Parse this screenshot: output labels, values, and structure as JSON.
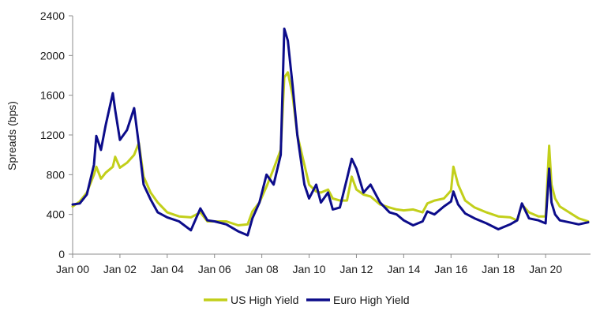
{
  "chart_data": {
    "type": "line",
    "title": "",
    "xlabel": "",
    "ylabel": "Spreads (bps)",
    "ylim": [
      0,
      2400
    ],
    "xlim": [
      2000.0,
      2021.9
    ],
    "y_ticks": [
      0,
      400,
      800,
      1200,
      1600,
      2000,
      2400
    ],
    "x_ticks": [
      {
        "value": 2000,
        "label": "Jan 00"
      },
      {
        "value": 2002,
        "label": "Jan 02"
      },
      {
        "value": 2004,
        "label": "Jan 04"
      },
      {
        "value": 2006,
        "label": "Jan 06"
      },
      {
        "value": 2008,
        "label": "Jan 08"
      },
      {
        "value": 2010,
        "label": "Jan 10"
      },
      {
        "value": 2012,
        "label": "Jan 12"
      },
      {
        "value": 2014,
        "label": "Jan 14"
      },
      {
        "value": 2016,
        "label": "Jan 16"
      },
      {
        "value": 2018,
        "label": "Jan 18"
      },
      {
        "value": 2020,
        "label": "Jan 20"
      }
    ],
    "grid": false,
    "legend_position": "bottom",
    "series": [
      {
        "name": "US High Yield",
        "color": "#c2cf1a",
        "x": [
          2000.0,
          2000.3,
          2000.6,
          2000.9,
          2001.0,
          2001.2,
          2001.4,
          2001.7,
          2001.8,
          2002.0,
          2002.3,
          2002.6,
          2002.8,
          2003.0,
          2003.3,
          2003.6,
          2004.0,
          2004.5,
          2005.0,
          2005.4,
          2005.7,
          2006.0,
          2006.5,
          2007.0,
          2007.4,
          2007.6,
          2007.9,
          2008.2,
          2008.5,
          2008.8,
          2008.95,
          2009.1,
          2009.3,
          2009.5,
          2009.8,
          2010.0,
          2010.3,
          2010.5,
          2010.8,
          2011.0,
          2011.3,
          2011.6,
          2011.8,
          2012.0,
          2012.3,
          2012.6,
          2013.0,
          2013.4,
          2013.7,
          2014.0,
          2014.4,
          2014.8,
          2015.0,
          2015.3,
          2015.7,
          2016.0,
          2016.1,
          2016.3,
          2016.6,
          2017.0,
          2017.5,
          2018.0,
          2018.5,
          2018.8,
          2019.0,
          2019.3,
          2019.7,
          2020.0,
          2020.15,
          2020.25,
          2020.4,
          2020.6,
          2021.0,
          2021.4,
          2021.8
        ],
        "y": [
          480,
          530,
          620,
          800,
          880,
          760,
          820,
          880,
          980,
          870,
          920,
          1000,
          1120,
          780,
          620,
          520,
          420,
          380,
          370,
          420,
          330,
          330,
          330,
          290,
          300,
          430,
          520,
          680,
          860,
          1050,
          1780,
          1830,
          1600,
          1200,
          900,
          700,
          630,
          620,
          650,
          560,
          540,
          540,
          780,
          650,
          600,
          580,
          500,
          470,
          450,
          440,
          450,
          420,
          510,
          540,
          560,
          640,
          880,
          700,
          540,
          470,
          420,
          380,
          370,
          340,
          500,
          420,
          380,
          380,
          1090,
          700,
          560,
          480,
          420,
          360,
          330
        ]
      },
      {
        "name": "Euro High Yield",
        "color": "#0c0c8a",
        "x": [
          2000.0,
          2000.3,
          2000.6,
          2000.9,
          2001.0,
          2001.2,
          2001.4,
          2001.7,
          2001.8,
          2002.0,
          2002.3,
          2002.6,
          2002.8,
          2003.0,
          2003.3,
          2003.6,
          2004.0,
          2004.5,
          2005.0,
          2005.4,
          2005.7,
          2006.0,
          2006.5,
          2007.0,
          2007.4,
          2007.6,
          2007.9,
          2008.2,
          2008.5,
          2008.8,
          2008.95,
          2009.1,
          2009.3,
          2009.5,
          2009.8,
          2010.0,
          2010.3,
          2010.5,
          2010.8,
          2011.0,
          2011.3,
          2011.6,
          2011.8,
          2012.0,
          2012.3,
          2012.6,
          2013.0,
          2013.4,
          2013.7,
          2014.0,
          2014.4,
          2014.8,
          2015.0,
          2015.3,
          2015.7,
          2016.0,
          2016.1,
          2016.3,
          2016.6,
          2017.0,
          2017.5,
          2018.0,
          2018.5,
          2018.8,
          2019.0,
          2019.3,
          2019.7,
          2020.0,
          2020.15,
          2020.25,
          2020.4,
          2020.6,
          2021.0,
          2021.4,
          2021.8
        ],
        "y": [
          500,
          510,
          600,
          900,
          1190,
          1050,
          1300,
          1620,
          1450,
          1150,
          1250,
          1470,
          1100,
          700,
          550,
          420,
          370,
          330,
          240,
          460,
          340,
          330,
          300,
          230,
          190,
          360,
          520,
          800,
          700,
          1000,
          2270,
          2150,
          1700,
          1200,
          700,
          560,
          700,
          520,
          620,
          450,
          470,
          760,
          960,
          860,
          620,
          700,
          520,
          420,
          400,
          340,
          290,
          330,
          430,
          400,
          480,
          530,
          630,
          500,
          410,
          360,
          310,
          250,
          300,
          340,
          510,
          360,
          340,
          310,
          860,
          520,
          400,
          340,
          320,
          300,
          320
        ]
      }
    ]
  }
}
